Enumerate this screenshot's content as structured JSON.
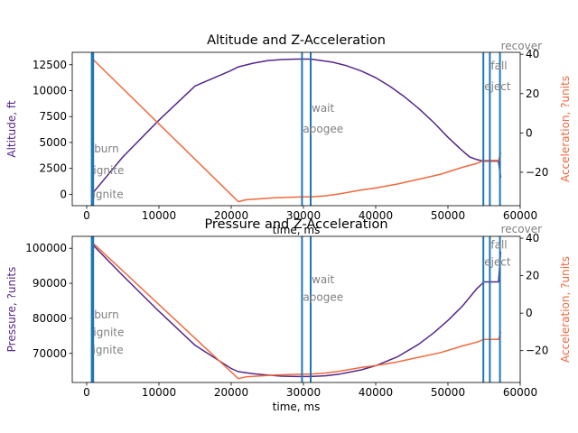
{
  "colors": {
    "altitude": "#542788",
    "pressure": "#542788",
    "acceleration": "#f1683c",
    "event_line": "#1f77b4",
    "event_label": "#808080",
    "axis": "#000000"
  },
  "chart_data": [
    {
      "type": "line",
      "title": "Altitude and Z-Acceleration",
      "xlabel": "time, ms",
      "ylabel_left": "Altitude, ft",
      "ylabel_right": "Acceleration, ?units",
      "xlim": [
        -2000,
        60000
      ],
      "ylim_left": [
        -1100,
        13700
      ],
      "ylim_right": [
        -37,
        41
      ],
      "xticks": [
        0,
        10000,
        20000,
        30000,
        40000,
        50000,
        60000
      ],
      "xtick_labels": [
        "0",
        "10000",
        "20000",
        "30000",
        "40000",
        "50000",
        "60000"
      ],
      "yticks_left": [
        0,
        2500,
        5000,
        7500,
        10000,
        12500
      ],
      "ytick_labels_left": [
        "0",
        "2500",
        "5000",
        "7500",
        "10000",
        "12500"
      ],
      "yticks_right": [
        -20,
        0,
        20,
        40
      ],
      "ytick_labels_right": [
        "−20",
        "0",
        "20",
        "40"
      ],
      "series": [
        {
          "axis": "left",
          "color_key": "altitude",
          "x": [
            700,
            5000,
            10000,
            15000,
            20000,
            21000,
            23000,
            25000,
            27000,
            29000,
            30000,
            31000,
            32000,
            34000,
            36000,
            38000,
            40000,
            42000,
            44000,
            46000,
            48000,
            50000,
            52000,
            53000,
            54000,
            54900,
            55500,
            56000,
            57000,
            57300
          ],
          "y": [
            0,
            3600,
            7150,
            10450,
            11950,
            12300,
            12650,
            12900,
            13000,
            13050,
            13050,
            13050,
            12950,
            12750,
            12400,
            11900,
            11250,
            10400,
            9400,
            8250,
            6950,
            5500,
            4200,
            3600,
            3350,
            3200,
            3200,
            3200,
            3200,
            1600
          ]
        },
        {
          "axis": "right",
          "color_key": "acceleration",
          "x": [
            700,
            21000,
            22000,
            24000,
            26000,
            28000,
            30000,
            31000,
            33000,
            35000,
            38000,
            40000,
            43000,
            46000,
            49000,
            52000,
            54000,
            55000,
            56000,
            57000,
            57300
          ],
          "y": [
            38,
            -35,
            -34,
            -33.5,
            -33,
            -32.8,
            -32.5,
            -32.5,
            -32,
            -31,
            -29,
            -28,
            -26,
            -23.5,
            -21,
            -17.5,
            -15.5,
            -14,
            -14,
            -14,
            -10
          ]
        }
      ],
      "events": [
        {
          "x": 700,
          "label": "ignite",
          "label_y": 0
        },
        {
          "x": 800,
          "label": "ignite",
          "label_y": 2300
        },
        {
          "x": 900,
          "label": "burn",
          "label_y": 4400
        },
        {
          "x": 29800,
          "label": "apogee",
          "label_y": 6300
        },
        {
          "x": 31000,
          "label": "wait",
          "label_y": 8300
        },
        {
          "x": 54900,
          "label": "eject",
          "label_y": 10400
        },
        {
          "x": 55800,
          "label": "fall",
          "label_y": 12400
        },
        {
          "x": 57200,
          "label": "recover",
          "label_y": 14300
        }
      ]
    },
    {
      "type": "line",
      "title": "Pressure and Z-Acceleration",
      "xlabel": "time, ms",
      "ylabel_left": "Pressure, ?units",
      "ylabel_right": "Acceleration, ?units",
      "xlim": [
        -2000,
        60000
      ],
      "ylim_left": [
        61700,
        103400
      ],
      "ylim_right": [
        -37,
        41
      ],
      "xticks": [
        0,
        10000,
        20000,
        30000,
        40000,
        50000,
        60000
      ],
      "xtick_labels": [
        "0",
        "10000",
        "20000",
        "30000",
        "40000",
        "50000",
        "60000"
      ],
      "yticks_left": [
        70000,
        80000,
        90000,
        100000
      ],
      "ytick_labels_left": [
        "70000",
        "80000",
        "90000",
        "100000"
      ],
      "yticks_right": [
        -20,
        0,
        20,
        40
      ],
      "ytick_labels_right": [
        "−20",
        "0",
        "20",
        "40"
      ],
      "series": [
        {
          "axis": "left",
          "color_key": "pressure",
          "x": [
            700,
            5000,
            10000,
            15000,
            20000,
            21000,
            23000,
            25000,
            27000,
            29000,
            31000,
            33000,
            35000,
            38000,
            40000,
            43000,
            46000,
            48000,
            50000,
            52000,
            53000,
            54000,
            55000,
            56000,
            57000,
            57300
          ],
          "y": [
            101300,
            92200,
            82000,
            72300,
            65700,
            64800,
            64200,
            63800,
            63500,
            63400,
            63400,
            63600,
            64100,
            65300,
            66500,
            69000,
            72700,
            75800,
            79400,
            83500,
            86000,
            88500,
            90400,
            90400,
            90400,
            99000
          ]
        },
        {
          "axis": "right",
          "color_key": "acceleration",
          "x": [
            700,
            21000,
            22000,
            24000,
            26000,
            28000,
            30000,
            31000,
            33000,
            35000,
            38000,
            40000,
            43000,
            46000,
            49000,
            52000,
            54000,
            55000,
            56000,
            57000,
            57300
          ],
          "y": [
            38,
            -35,
            -34,
            -33.5,
            -33,
            -32.8,
            -32.5,
            -32.5,
            -32,
            -31,
            -29,
            -28,
            -26,
            -23.5,
            -21,
            -17.5,
            -15.5,
            -14,
            -14,
            -14,
            -10
          ]
        }
      ],
      "events": [
        {
          "x": 700,
          "label": "ignite",
          "label_y": 71000
        },
        {
          "x": 800,
          "label": "ignite",
          "label_y": 76000
        },
        {
          "x": 900,
          "label": "burn",
          "label_y": 81000
        },
        {
          "x": 29800,
          "label": "apogee",
          "label_y": 86000
        },
        {
          "x": 31000,
          "label": "wait",
          "label_y": 91000
        },
        {
          "x": 54900,
          "label": "eject",
          "label_y": 96000
        },
        {
          "x": 55800,
          "label": "fall",
          "label_y": 101000
        },
        {
          "x": 57200,
          "label": "recover",
          "label_y": 105500
        }
      ]
    }
  ]
}
